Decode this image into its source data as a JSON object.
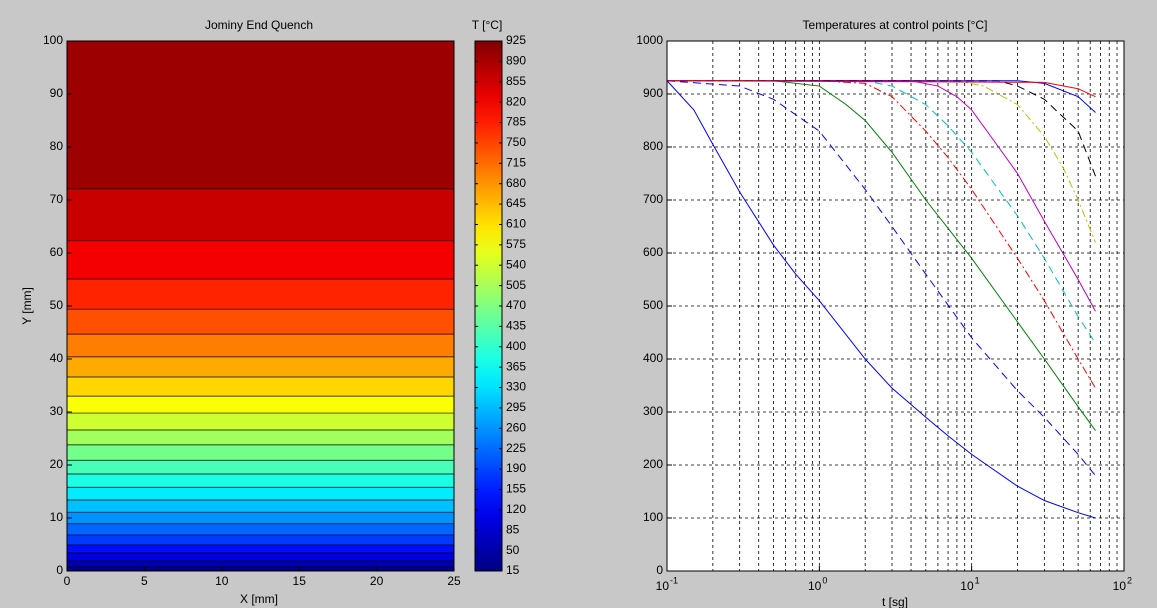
{
  "chart_data": [
    {
      "type": "contour",
      "title": "Jominy End Quench",
      "xlabel": "X [mm]",
      "ylabel": "Y [mm]",
      "xlim": [
        0,
        25
      ],
      "xticks": [
        0,
        5,
        10,
        15,
        20,
        25
      ],
      "ylim": [
        0,
        100
      ],
      "yticks": [
        0,
        10,
        20,
        30,
        40,
        50,
        60,
        70,
        80,
        90,
        100
      ],
      "band_edges": [
        0,
        0.75,
        1.9,
        3.4,
        4.9,
        6.8,
        8.9,
        11.1,
        13.4,
        15.8,
        18.3,
        20.9,
        23.8,
        26.6,
        29.8,
        33.0,
        36.6,
        40.4,
        44.7,
        49.4,
        55.1,
        62.3,
        72.1,
        100
      ],
      "band_values": [
        20,
        60,
        100,
        140,
        180,
        220,
        260,
        300,
        340,
        380,
        420,
        460,
        500,
        540,
        580,
        620,
        660,
        700,
        740,
        780,
        820,
        860,
        900
      ],
      "colormap": "jet",
      "colorbar_title": "T [°C]",
      "clim": [
        15,
        925
      ],
      "cticks": [
        15,
        50,
        85,
        120,
        155,
        190,
        225,
        260,
        295,
        330,
        365,
        400,
        435,
        470,
        505,
        540,
        575,
        610,
        645,
        680,
        715,
        750,
        785,
        820,
        855,
        890,
        925
      ]
    },
    {
      "type": "line",
      "title": "Temperatures at control points [°C]",
      "xlabel": "t [sg]",
      "xscale": "log",
      "xlim": [
        0.1,
        100
      ],
      "xticks": [
        {
          "value": 0.1,
          "label": "10",
          "exponent": "-1"
        },
        {
          "value": 1,
          "label": "10",
          "exponent": "0"
        },
        {
          "value": 10,
          "label": "10",
          "exponent": "1"
        },
        {
          "value": 100,
          "label": "10",
          "exponent": "2"
        }
      ],
      "ylim": [
        0,
        1000
      ],
      "yticks": [
        0,
        100,
        200,
        300,
        400,
        500,
        600,
        700,
        800,
        900,
        1000
      ],
      "grid": true,
      "minor_grid": true,
      "series": [
        {
          "color": "#0000ff",
          "dash": "-",
          "x": [
            0.1,
            0.15,
            0.2,
            0.3,
            0.5,
            0.7,
            1,
            2,
            3,
            5,
            7,
            10,
            20,
            30,
            50,
            65
          ],
          "values": [
            925,
            870,
            805,
            715,
            615,
            560,
            510,
            400,
            345,
            290,
            255,
            220,
            160,
            133,
            110,
            100
          ]
        },
        {
          "color": "#0000ff",
          "dash": "--",
          "x": [
            0.1,
            0.3,
            0.5,
            1,
            2,
            3,
            5,
            10,
            20,
            30,
            50,
            65
          ],
          "values": [
            925,
            915,
            890,
            830,
            720,
            650,
            560,
            440,
            340,
            290,
            220,
            180
          ]
        },
        {
          "color": "#008000",
          "dash": "-",
          "x": [
            0.1,
            0.5,
            1,
            1.5,
            2,
            3,
            5,
            10,
            20,
            30,
            50,
            65
          ],
          "values": [
            925,
            925,
            915,
            880,
            850,
            790,
            700,
            590,
            470,
            400,
            310,
            265
          ]
        },
        {
          "color": "#ff0000",
          "dash": "-.",
          "x": [
            0.1,
            1,
            2,
            3,
            5,
            7,
            10,
            20,
            30,
            50,
            65
          ],
          "values": [
            925,
            925,
            920,
            895,
            830,
            780,
            720,
            590,
            510,
            400,
            345
          ]
        },
        {
          "color": "#00bfbf",
          "dash": "--",
          "x": [
            0.1,
            2,
            3,
            5,
            7,
            10,
            20,
            30,
            50,
            65
          ],
          "values": [
            925,
            925,
            915,
            880,
            840,
            790,
            670,
            590,
            480,
            430
          ]
        },
        {
          "color": "#bf00bf",
          "dash": "-",
          "x": [
            0.1,
            4,
            6,
            8,
            10,
            15,
            20,
            30,
            50,
            65
          ],
          "values": [
            925,
            925,
            915,
            895,
            870,
            800,
            750,
            660,
            550,
            490
          ]
        },
        {
          "color": "#bfbf00",
          "dash": "-.",
          "x": [
            0.1,
            8,
            12,
            20,
            30,
            40,
            50,
            65
          ],
          "values": [
            925,
            925,
            915,
            880,
            820,
            760,
            700,
            620
          ]
        },
        {
          "color": "#000000",
          "dash": "--",
          "x": [
            0.1,
            15,
            20,
            30,
            50,
            65
          ],
          "values": [
            925,
            925,
            915,
            890,
            830,
            745
          ]
        },
        {
          "color": "#0000ff",
          "dash": "-",
          "x": [
            0.1,
            20,
            30,
            50,
            65
          ],
          "values": [
            925,
            925,
            920,
            895,
            865
          ]
        },
        {
          "color": "#ff0000",
          "dash": "-",
          "x": [
            0.1,
            30,
            50,
            65
          ],
          "values": [
            925,
            922,
            910,
            895
          ]
        }
      ]
    }
  ]
}
